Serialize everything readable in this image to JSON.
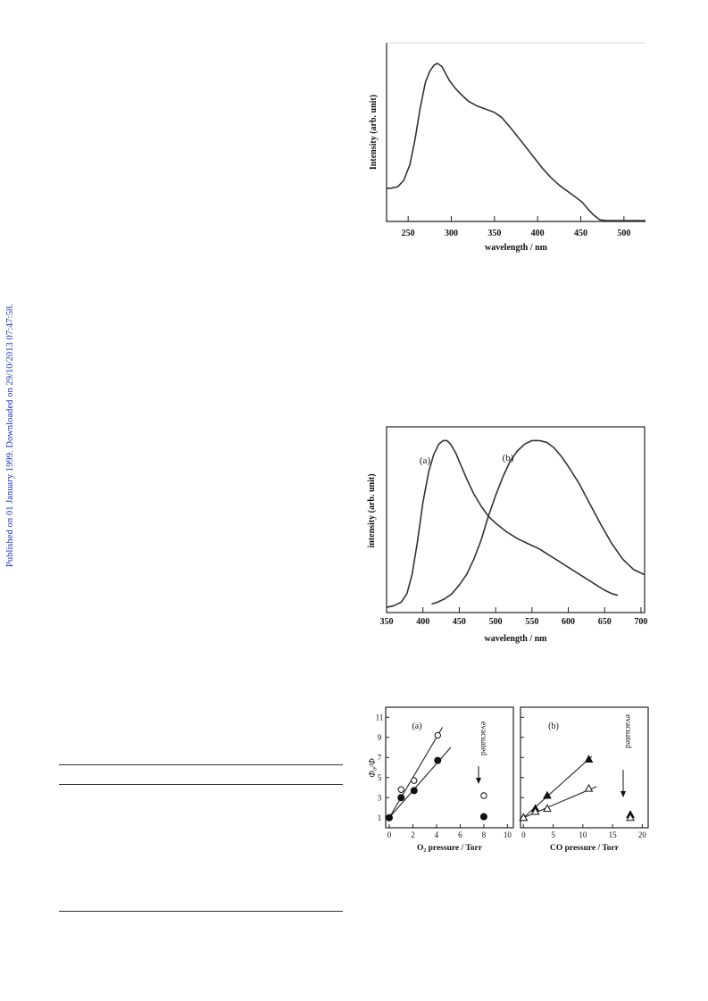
{
  "sidebar": {
    "text": "Published on 01 January 1999. Downloaded on 29/10/2013 07:47:58."
  },
  "chart_data": [
    {
      "type": "line",
      "title": "",
      "xlabel": "wavelength / nm",
      "ylabel": "Intensity (arb. unit)",
      "xlim": [
        225,
        525
      ],
      "xticks": [
        250,
        300,
        350,
        400,
        450,
        500
      ],
      "series": [
        {
          "x": [
            225,
            230,
            238,
            245,
            252,
            258,
            264,
            270,
            275,
            280,
            284,
            289,
            293,
            298,
            305,
            312,
            320,
            330,
            340,
            350,
            358,
            366,
            375,
            385,
            395,
            405,
            415,
            425,
            435,
            445,
            452,
            458,
            465,
            472,
            480,
            490,
            500,
            510,
            525
          ],
          "y": [
            0.21,
            0.21,
            0.22,
            0.26,
            0.36,
            0.52,
            0.72,
            0.88,
            0.95,
            0.99,
            1.0,
            0.98,
            0.94,
            0.89,
            0.84,
            0.8,
            0.76,
            0.73,
            0.71,
            0.69,
            0.66,
            0.61,
            0.55,
            0.48,
            0.41,
            0.34,
            0.28,
            0.23,
            0.19,
            0.15,
            0.12,
            0.08,
            0.04,
            0.01,
            0.005,
            0.005,
            0.005,
            0.005,
            0.005
          ]
        }
      ]
    },
    {
      "type": "line",
      "title": "",
      "xlabel": "wavelength / nm",
      "ylabel": "intensity (arb. unit)",
      "xlim": [
        350,
        705
      ],
      "xticks": [
        350,
        400,
        450,
        500,
        550,
        600,
        650,
        700
      ],
      "annotations": [
        "(a)",
        "(b)"
      ],
      "series": [
        {
          "name": "(a)",
          "x": [
            350,
            360,
            370,
            378,
            385,
            392,
            400,
            408,
            415,
            422,
            428,
            433,
            438,
            445,
            452,
            460,
            470,
            480,
            490,
            500,
            515,
            530,
            545,
            560,
            575,
            590,
            605,
            620,
            635,
            650,
            660,
            668
          ],
          "y": [
            0.03,
            0.04,
            0.06,
            0.11,
            0.22,
            0.4,
            0.64,
            0.82,
            0.92,
            0.98,
            1.0,
            1.0,
            0.98,
            0.93,
            0.86,
            0.78,
            0.69,
            0.62,
            0.56,
            0.52,
            0.47,
            0.43,
            0.4,
            0.37,
            0.33,
            0.29,
            0.25,
            0.21,
            0.17,
            0.13,
            0.11,
            0.1
          ]
        },
        {
          "name": "(b)",
          "x": [
            412,
            420,
            430,
            440,
            450,
            460,
            470,
            480,
            490,
            500,
            510,
            520,
            530,
            540,
            550,
            560,
            570,
            580,
            590,
            600,
            615,
            630,
            645,
            660,
            675,
            690,
            705
          ],
          "y": [
            0.05,
            0.06,
            0.08,
            0.11,
            0.16,
            0.22,
            0.31,
            0.42,
            0.56,
            0.68,
            0.79,
            0.88,
            0.94,
            0.98,
            1.0,
            1.0,
            0.99,
            0.96,
            0.91,
            0.85,
            0.75,
            0.63,
            0.51,
            0.4,
            0.31,
            0.25,
            0.22
          ]
        }
      ]
    },
    {
      "type": "scatter",
      "title": "",
      "panel": "(a)",
      "xlabel": "O₂ pressure / Torr",
      "ylabel": "Φ₀/Φ",
      "xlim": [
        -0.3,
        10.5
      ],
      "ylim": [
        0,
        12
      ],
      "xticks": [
        0,
        2,
        4,
        6,
        8,
        10
      ],
      "yticks": [
        1,
        3,
        5,
        7,
        9,
        11
      ],
      "annotations": [
        "evacuated"
      ],
      "series": [
        {
          "marker": "open-circle",
          "x": [
            0,
            1.0,
            2.1,
            4.1,
            8.0
          ],
          "y": [
            1.0,
            3.8,
            4.7,
            9.2,
            3.2
          ],
          "fit": [
            [
              0,
              1.0
            ],
            [
              4.5,
              10.0
            ]
          ]
        },
        {
          "marker": "filled-circle",
          "x": [
            0,
            1.0,
            2.1,
            4.1,
            8.0
          ],
          "y": [
            1.0,
            3.0,
            3.7,
            6.7,
            1.1
          ],
          "fit": [
            [
              0,
              1.0
            ],
            [
              5.2,
              8.0
            ]
          ]
        }
      ]
    },
    {
      "type": "scatter",
      "title": "",
      "panel": "(b)",
      "xlabel": "CO pressure / Torr",
      "ylabel": "",
      "xlim": [
        -0.5,
        21
      ],
      "ylim": [
        0,
        12
      ],
      "xticks": [
        0,
        5,
        10,
        15,
        20
      ],
      "yticks": [
        1,
        3,
        5,
        7,
        9,
        11
      ],
      "annotations": [
        "evacuated"
      ],
      "series": [
        {
          "marker": "filled-triangle",
          "x": [
            0,
            2.0,
            4.0,
            11.0,
            18.0
          ],
          "y": [
            1.0,
            1.9,
            3.2,
            6.8,
            1.3
          ],
          "fit": [
            [
              0,
              1.0
            ],
            [
              11.5,
              7.1
            ]
          ]
        },
        {
          "marker": "open-triangle",
          "x": [
            0,
            2.0,
            4.0,
            11.0,
            18.0
          ],
          "y": [
            1.0,
            1.6,
            1.9,
            3.9,
            1.0
          ],
          "fit": [
            [
              0,
              1.0
            ],
            [
              12.3,
              4.1
            ]
          ]
        }
      ]
    }
  ]
}
